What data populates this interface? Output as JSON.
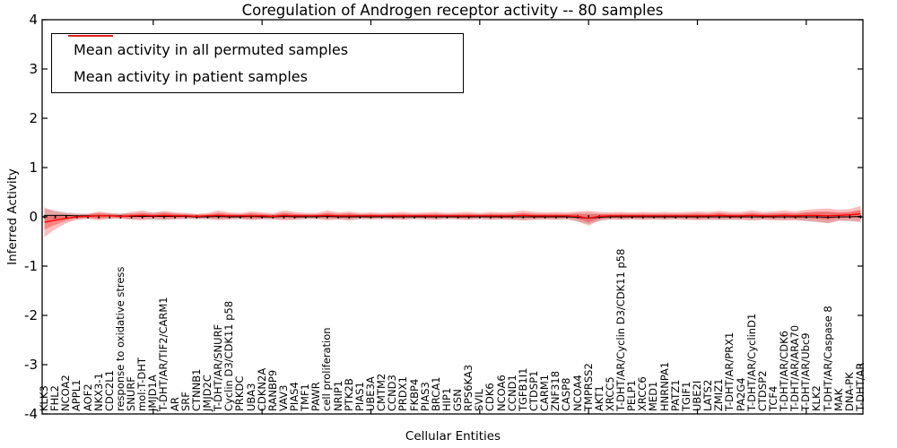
{
  "title": "Coregulation of Androgen receptor activity -- 80 samples",
  "chart_data": {
    "type": "line",
    "title": "Coregulation of Androgen receptor activity -- 80 samples",
    "xlabel": "Cellular Entities",
    "ylabel": "Inferred Activity",
    "ylim": [
      -4,
      4
    ],
    "ytick_labels": [
      "4",
      "3",
      "2",
      "1",
      "0",
      "-1",
      "-2",
      "-3",
      "-4"
    ],
    "yticks": [
      4,
      3,
      2,
      1,
      0,
      -1,
      -2,
      -3,
      -4
    ],
    "grid": false,
    "legend_position": "upper left",
    "categories": [
      "KLK3",
      "FHL2",
      "NCOA2",
      "APPL1",
      "AOF2",
      "NKX3-1",
      "CDC2L1",
      "response to oxidative stress",
      "SNURF",
      "mol:T-DHT",
      "JMJD1A",
      "T-DHT/AR/TIF2/CARM1",
      "AR",
      "SRF",
      "CTNNB1",
      "JMJD2C",
      "T-DHT/AR/SNURF",
      "Cyclin D3/CDK11 p58",
      "PRKDC",
      "UBA3",
      "CDKN2A",
      "RANBP9",
      "VAV3",
      "PIAS4",
      "TMF1",
      "PAWR",
      "cell proliferation",
      "NRIP1",
      "PTK2B",
      "PIAS1",
      "UBE3A",
      "CMTM2",
      "CCND3",
      "PRDX1",
      "FKBP4",
      "PIAS3",
      "BRCA1",
      "HIP1",
      "GSN",
      "RPS6KA3",
      "SVIL",
      "CDK6",
      "NCOA6",
      "CCND1",
      "TGFB1I1",
      "CTDSP1",
      "CARM1",
      "ZNF318",
      "CASP8",
      "NCOA4",
      "TMPRSS2",
      "AKT1",
      "XRCC5",
      "T-DHT/AR/Cyclin D3/CDK11 p58",
      "PELP1",
      "XRCC6",
      "MED1",
      "HNRNPA1",
      "PATZ1",
      "TGIF1",
      "UBE2I",
      "LATS2",
      "ZMIZ1",
      "T-DHT/AR/PRX1",
      "PA2G4",
      "T-DHT/AR/CyclinD1",
      "CTDSP2",
      "TCF4",
      "T-DHT/AR/CDK6",
      "T-DHT/AR/ARA70",
      "T-DHT/AR/Ubc9",
      "KLK2",
      "T-DHT/AR/Caspase 8",
      "MAK",
      "DNA-PK",
      "T-DHT/AR"
    ],
    "series": [
      {
        "name": "Mean activity in all permuted samples",
        "color": "#000000",
        "values": [
          0.03,
          0.03,
          0.03,
          0.02,
          0.02,
          0.02,
          0.02,
          0.02,
          0.01,
          0.01,
          0.01,
          0.01,
          0.01,
          0.01,
          0.0,
          0.0,
          0.01,
          0.0,
          0.0,
          0.01,
          0.0,
          0.0,
          0.01,
          0.0,
          0.0,
          0.0,
          0.01,
          0.0,
          0.0,
          0.0,
          0.0,
          0.0,
          0.0,
          0.0,
          0.0,
          0.0,
          0.0,
          0.0,
          0.0,
          0.0,
          0.0,
          0.0,
          0.0,
          0.0,
          0.0,
          0.0,
          0.0,
          0.0,
          0.0,
          -0.01,
          -0.03,
          -0.01,
          0.0,
          0.0,
          0.0,
          0.0,
          0.0,
          0.0,
          0.0,
          0.0,
          0.0,
          0.0,
          0.0,
          0.0,
          0.0,
          0.0,
          0.0,
          0.0,
          0.0,
          0.0,
          0.0,
          0.0,
          -0.01,
          0.0,
          0.0,
          0.01
        ]
      },
      {
        "name": "Mean activity in patient samples",
        "color": "#ff0000",
        "values": [
          -0.11,
          -0.07,
          -0.03,
          0.0,
          0.01,
          0.02,
          0.02,
          0.01,
          0.02,
          0.03,
          0.02,
          0.03,
          0.02,
          0.02,
          0.01,
          0.02,
          0.03,
          0.02,
          0.02,
          0.02,
          0.02,
          0.01,
          0.03,
          0.02,
          0.02,
          0.02,
          0.03,
          0.02,
          0.02,
          0.02,
          0.02,
          0.02,
          0.02,
          0.02,
          0.02,
          0.02,
          0.02,
          0.02,
          0.02,
          0.02,
          0.02,
          0.02,
          0.02,
          0.02,
          0.03,
          0.02,
          0.02,
          0.02,
          0.02,
          0.01,
          -0.03,
          0.01,
          0.02,
          0.02,
          0.02,
          0.02,
          0.02,
          0.02,
          0.02,
          0.02,
          0.02,
          0.02,
          0.03,
          0.02,
          0.02,
          0.03,
          0.02,
          0.02,
          0.03,
          0.02,
          0.03,
          0.03,
          0.02,
          0.03,
          0.04,
          0.06
        ]
      }
    ],
    "bands": [
      {
        "name": "permuted-samples-std",
        "center_series": 0,
        "color": "#000000",
        "opacity": 0.13,
        "halfwidths": [
          0.13,
          0.1,
          0.07,
          0.05,
          0.05,
          0.06,
          0.05,
          0.05,
          0.06,
          0.06,
          0.08,
          0.08,
          0.06,
          0.05,
          0.05,
          0.05,
          0.06,
          0.05,
          0.05,
          0.06,
          0.05,
          0.05,
          0.07,
          0.06,
          0.05,
          0.05,
          0.06,
          0.05,
          0.07,
          0.05,
          0.05,
          0.05,
          0.05,
          0.06,
          0.05,
          0.05,
          0.06,
          0.05,
          0.05,
          0.06,
          0.05,
          0.06,
          0.05,
          0.06,
          0.07,
          0.06,
          0.05,
          0.06,
          0.05,
          0.09,
          0.12,
          0.07,
          0.05,
          0.06,
          0.05,
          0.06,
          0.05,
          0.06,
          0.05,
          0.06,
          0.06,
          0.06,
          0.07,
          0.06,
          0.06,
          0.07,
          0.06,
          0.06,
          0.07,
          0.06,
          0.09,
          0.11,
          0.12,
          0.08,
          0.09,
          0.12
        ]
      },
      {
        "name": "patient-samples-std",
        "center_series": 1,
        "color": "#ff0000",
        "opacity": 0.26,
        "halfwidths": [
          0.3,
          0.18,
          0.1,
          0.06,
          0.05,
          0.09,
          0.06,
          0.05,
          0.08,
          0.1,
          0.06,
          0.09,
          0.07,
          0.06,
          0.05,
          0.06,
          0.1,
          0.07,
          0.06,
          0.09,
          0.07,
          0.06,
          0.1,
          0.08,
          0.06,
          0.06,
          0.1,
          0.07,
          0.09,
          0.06,
          0.07,
          0.06,
          0.07,
          0.08,
          0.06,
          0.07,
          0.08,
          0.06,
          0.07,
          0.08,
          0.06,
          0.08,
          0.07,
          0.08,
          0.1,
          0.08,
          0.07,
          0.08,
          0.07,
          0.1,
          0.15,
          0.09,
          0.07,
          0.08,
          0.07,
          0.08,
          0.07,
          0.08,
          0.07,
          0.08,
          0.09,
          0.08,
          0.09,
          0.08,
          0.08,
          0.1,
          0.08,
          0.09,
          0.1,
          0.09,
          0.11,
          0.13,
          0.15,
          0.11,
          0.12,
          0.16
        ]
      },
      {
        "name": "patient-samples-inner-band",
        "center_series": 1,
        "color": "#ff0000",
        "opacity": 0.3,
        "halfwidths": [
          0.15,
          0.09,
          0.05,
          0.03,
          0.03,
          0.05,
          0.03,
          0.03,
          0.04,
          0.05,
          0.03,
          0.05,
          0.04,
          0.03,
          0.03,
          0.03,
          0.05,
          0.04,
          0.03,
          0.05,
          0.04,
          0.03,
          0.05,
          0.04,
          0.03,
          0.03,
          0.05,
          0.04,
          0.05,
          0.03,
          0.04,
          0.03,
          0.04,
          0.04,
          0.03,
          0.04,
          0.04,
          0.03,
          0.04,
          0.04,
          0.03,
          0.04,
          0.04,
          0.04,
          0.05,
          0.04,
          0.04,
          0.04,
          0.04,
          0.05,
          0.08,
          0.05,
          0.04,
          0.04,
          0.04,
          0.04,
          0.04,
          0.04,
          0.04,
          0.04,
          0.05,
          0.04,
          0.05,
          0.04,
          0.04,
          0.05,
          0.04,
          0.05,
          0.05,
          0.05,
          0.06,
          0.07,
          0.08,
          0.06,
          0.06,
          0.08
        ]
      }
    ]
  },
  "legend": {
    "items": [
      {
        "label": "Mean activity in all permuted samples",
        "color": "#000000"
      },
      {
        "label": "Mean activity in patient samples",
        "color": "#ff0000"
      }
    ]
  }
}
